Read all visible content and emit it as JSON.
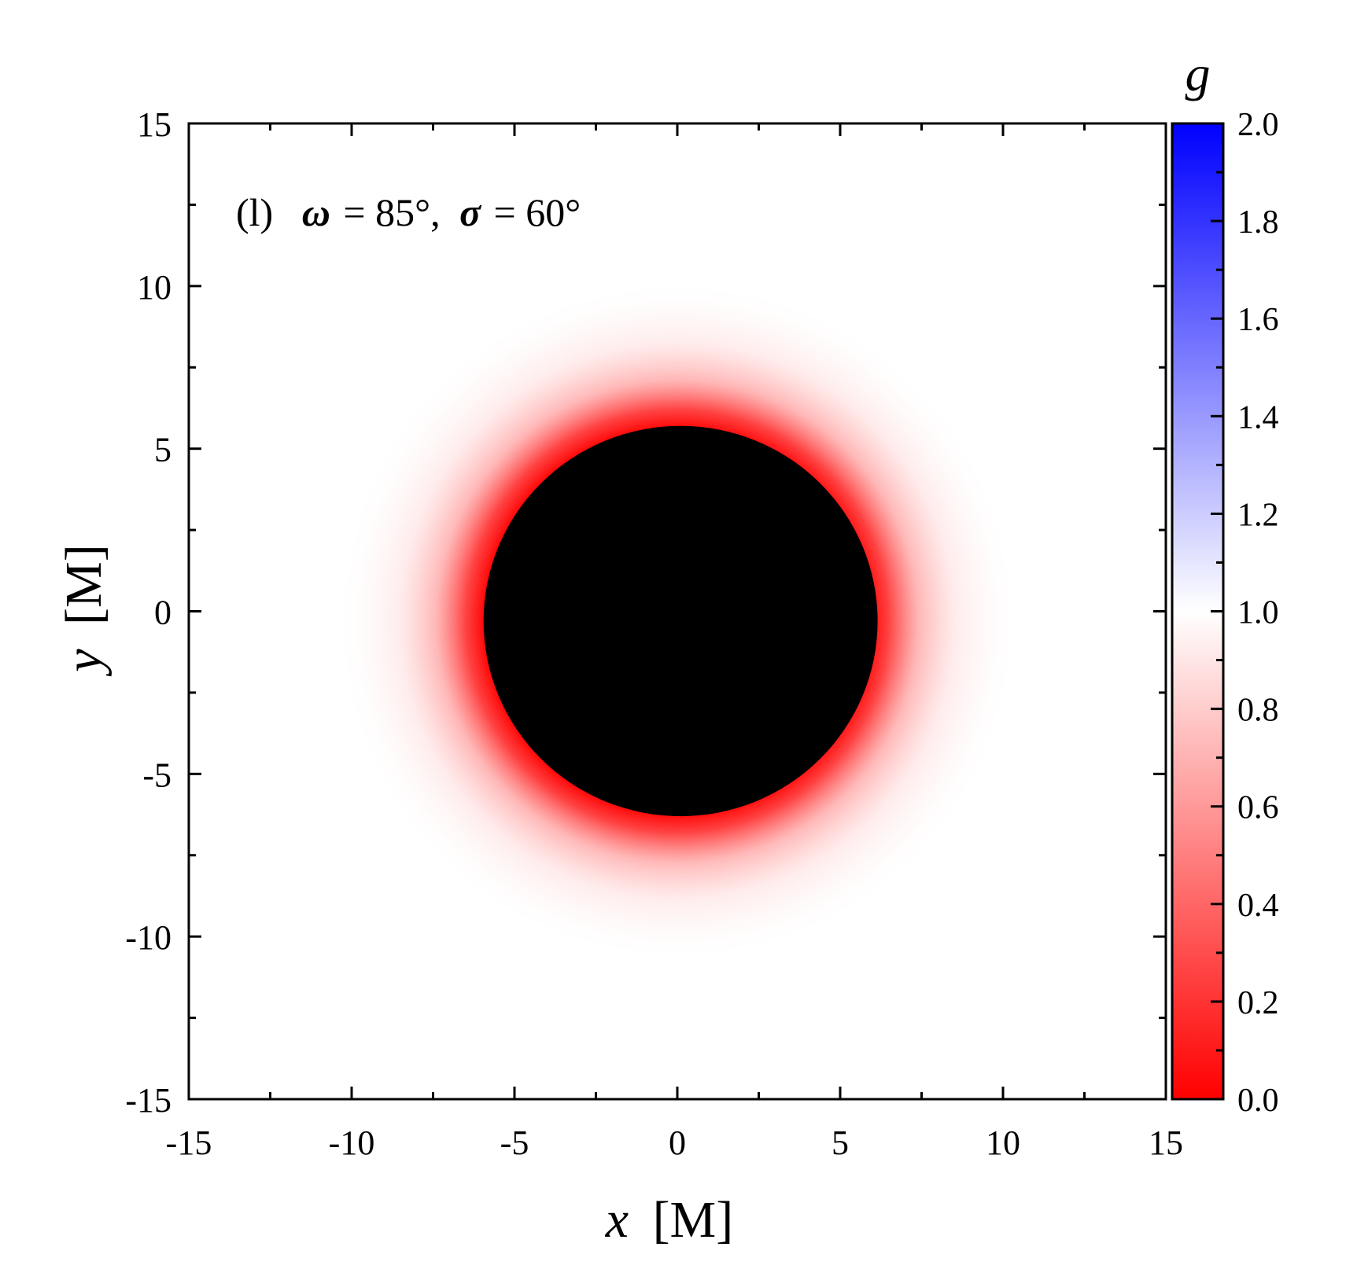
{
  "chart_data": {
    "type": "heatmap",
    "annotation": {
      "panel": "(l)",
      "omega_symbol": "ω",
      "omega_value": "= 85°,",
      "sigma_symbol": "σ",
      "sigma_value": "= 60°"
    },
    "xlabel": {
      "var": "x",
      "unit": "[M]"
    },
    "ylabel": {
      "var": "y",
      "unit": "[M]"
    },
    "xlim": [
      -15,
      15
    ],
    "ylim": [
      -15,
      15
    ],
    "x_ticks": [
      -15,
      -10,
      -5,
      0,
      5,
      10,
      15
    ],
    "y_ticks": [
      -15,
      -10,
      -5,
      0,
      5,
      10,
      15
    ],
    "colorbar": {
      "title": "g",
      "range": [
        0.0,
        2.0
      ],
      "ticks": [
        "0.0",
        "0.2",
        "0.4",
        "0.6",
        "0.8",
        "1.0",
        "1.2",
        "1.4",
        "1.6",
        "1.8",
        "2.0"
      ],
      "colors": {
        "low": "#ff0000",
        "mid": "#ffffff",
        "high": "#0000ff"
      }
    },
    "shadow": {
      "color": "#000000",
      "center": [
        0.1,
        -0.3
      ],
      "radius_x": 6.05,
      "radius_y": 6.0
    },
    "redshift_halo": {
      "center": [
        0.0,
        -0.3
      ],
      "outer_radius": 10.3,
      "inner_g": 0.0,
      "outer_g": 1.0
    },
    "grid": false,
    "legend": "none"
  }
}
